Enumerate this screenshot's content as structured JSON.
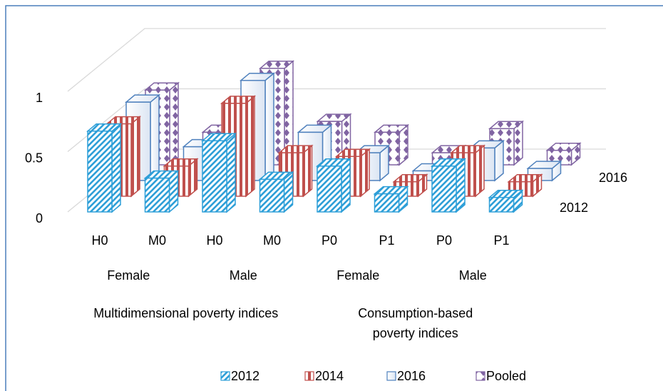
{
  "chart_data": {
    "type": "bar3d",
    "categories": [
      "H0",
      "M0",
      "H0",
      "M0",
      "P0",
      "P1",
      "P0",
      "P1"
    ],
    "category_groups": [
      "Female",
      "Male",
      "Female",
      "Male"
    ],
    "super_groups": [
      "Multidimensional poverty indices",
      "Consumption-based poverty indices"
    ],
    "series": [
      {
        "name": "2012",
        "color": "#2e9fd8",
        "values": [
          0.67,
          0.28,
          0.59,
          0.27,
          0.38,
          0.15,
          0.38,
          0.12
        ]
      },
      {
        "name": "2014",
        "color": "#c0504d",
        "values": [
          0.6,
          0.25,
          0.77,
          0.36,
          0.33,
          0.12,
          0.36,
          0.12
        ]
      },
      {
        "name": "2016",
        "color": "#4f81bd",
        "values": [
          0.65,
          0.28,
          0.83,
          0.4,
          0.23,
          0.08,
          0.27,
          0.1
        ]
      },
      {
        "name": "Pooled",
        "color": "#8064a2",
        "values": [
          0.62,
          0.27,
          0.8,
          0.36,
          0.27,
          0.1,
          0.3,
          0.12
        ]
      }
    ],
    "ylim": [
      0,
      1
    ],
    "yticks": [
      0,
      0.5,
      1
    ],
    "grid": true
  }
}
